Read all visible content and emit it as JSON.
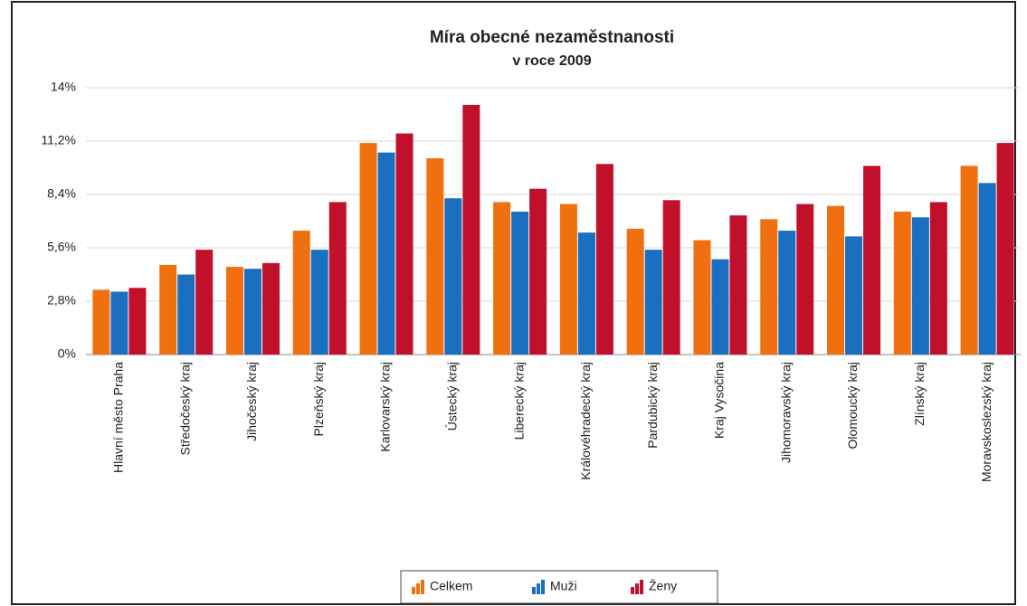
{
  "chart_data": {
    "type": "bar",
    "title": "Míra obecné nezaměstnanosti",
    "subtitle": "v roce 2009",
    "categories": [
      "Hlavní město Praha",
      "Středočeský kraj",
      "Jihočeský kraj",
      "Plzeňský kraj",
      "Karlovarský kraj",
      "Ústecký kraj",
      "Liberecký kraj",
      "Královéhradecký kraj",
      "Pardubický kraj",
      "Kraj Vysočina",
      "Jihomoravský kraj",
      "Olomoucký kraj",
      "Zlínský kraj",
      "Moravskoslezský kraj"
    ],
    "series": [
      {
        "name": "Celkem",
        "color": "#f07010",
        "values": [
          3.4,
          4.7,
          4.6,
          6.5,
          11.1,
          10.3,
          8.0,
          7.9,
          6.6,
          6.0,
          7.1,
          7.8,
          7.5,
          9.9
        ]
      },
      {
        "name": "Muži",
        "color": "#1a6fc0",
        "values": [
          3.3,
          4.2,
          4.5,
          5.5,
          10.6,
          8.2,
          7.5,
          6.4,
          5.5,
          5.0,
          6.5,
          6.2,
          7.2,
          9.0
        ]
      },
      {
        "name": "Ženy",
        "color": "#c0102a",
        "values": [
          3.5,
          5.5,
          4.8,
          8.0,
          11.6,
          13.1,
          8.7,
          10.0,
          8.1,
          7.3,
          7.9,
          9.9,
          8.0,
          11.1
        ]
      }
    ],
    "ylim": [
      0,
      14
    ],
    "yticks": [
      {
        "value": 0,
        "label": "0%"
      },
      {
        "value": 2.8,
        "label": "2,8%"
      },
      {
        "value": 5.6,
        "label": "5,6%"
      },
      {
        "value": 8.4,
        "label": "8,4%"
      },
      {
        "value": 11.2,
        "label": "11,2%"
      },
      {
        "value": 14,
        "label": "14%"
      }
    ],
    "grid": true,
    "legend": "bottom"
  }
}
